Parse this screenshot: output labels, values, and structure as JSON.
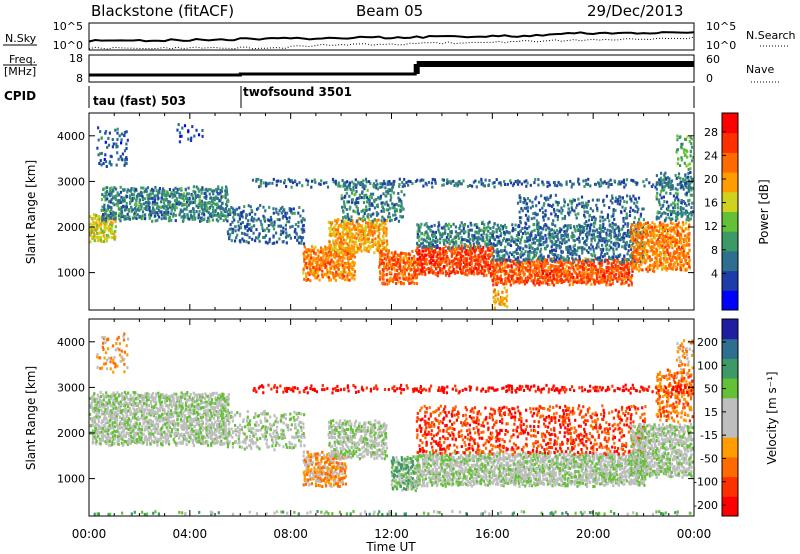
{
  "header": {
    "station": "Blackstone (fitACF)",
    "beam": "Beam 05",
    "date": "29/Dec/2013"
  },
  "strip_labels": {
    "nsky": "N.Sky",
    "nsky_top": "10^5",
    "nsky_bottom": "10^0",
    "nsearch": "N.Search",
    "nsearch_top": "10^5",
    "nsearch_bottom": "10^0",
    "freq_line1": "Freq.",
    "freq_line2": "[MHz]",
    "freq_top": "18",
    "freq_bottom": "8",
    "nave": "Nave",
    "nave_top": "60",
    "nave_bottom": "0",
    "cpid": "CPID",
    "cpid_mode1": "tau (fast) 503",
    "cpid_mode2": "twofsound 3501"
  },
  "colors": {
    "power": [
      "#0000ff",
      "#1e3ca8",
      "#2e6e8e",
      "#3c9a66",
      "#64c036",
      "#cfd21e",
      "#ff9c00",
      "#ff6a00",
      "#ff3000",
      "#ff0000"
    ],
    "velocity": [
      "#1e1ea0",
      "#2e6e8e",
      "#3c9a66",
      "#64c036",
      "#bebebe",
      "#bebebe",
      "#ff9c00",
      "#ff6a00",
      "#ff3000",
      "#ff0000"
    ]
  },
  "chart_data": [
    {
      "type": "heatmap",
      "name": "power",
      "xlabel": "",
      "ylabel": "Slant Range [km]",
      "x_ticks": [
        "00:00",
        "04:00",
        "08:00",
        "12:00",
        "16:00",
        "20:00",
        "00:00"
      ],
      "xlim_hours": [
        0,
        24
      ],
      "ylim": [
        180,
        4500
      ],
      "y_ticks": [
        1000,
        2000,
        3000,
        4000
      ],
      "colorbar_label": "Power [dB]",
      "colorbar_ticks": [
        4,
        8,
        12,
        16,
        20,
        24,
        28
      ],
      "colorbar_range": [
        0,
        30
      ],
      "bands": [
        {
          "t0": 0.0,
          "t1": 1.0,
          "r0": 1750,
          "r1": 2300,
          "level": 17,
          "density": 0.85
        },
        {
          "t0": 0.5,
          "t1": 5.5,
          "r0": 2200,
          "r1": 2900,
          "level": 8,
          "density": 0.75
        },
        {
          "t0": 0.3,
          "t1": 1.5,
          "r0": 3400,
          "r1": 4200,
          "level": 5,
          "density": 0.25
        },
        {
          "t0": 3.5,
          "t1": 4.5,
          "r0": 3900,
          "r1": 4300,
          "level": 4,
          "density": 0.2
        },
        {
          "t0": 5.5,
          "t1": 8.5,
          "r0": 1700,
          "r1": 2500,
          "level": 6,
          "density": 0.35
        },
        {
          "t0": 8.5,
          "t1": 10.5,
          "r0": 900,
          "r1": 1600,
          "level": 22,
          "density": 0.85
        },
        {
          "t0": 9.5,
          "t1": 11.8,
          "r0": 1500,
          "r1": 2200,
          "level": 20,
          "density": 0.8
        },
        {
          "t0": 10.0,
          "t1": 12.5,
          "r0": 2200,
          "r1": 3000,
          "level": 8,
          "density": 0.4
        },
        {
          "t0": 11.5,
          "t1": 13.0,
          "r0": 800,
          "r1": 1500,
          "level": 24,
          "density": 0.75
        },
        {
          "t0": 13.0,
          "t1": 16.0,
          "r0": 1000,
          "r1": 1600,
          "level": 26,
          "density": 0.9
        },
        {
          "t0": 13.0,
          "t1": 16.0,
          "r0": 1600,
          "r1": 2100,
          "level": 8,
          "density": 0.6
        },
        {
          "t0": 16.0,
          "t1": 16.6,
          "r0": 250,
          "r1": 700,
          "level": 20,
          "density": 0.6
        },
        {
          "t0": 16.0,
          "t1": 21.5,
          "r0": 800,
          "r1": 1300,
          "level": 25,
          "density": 0.9
        },
        {
          "t0": 16.0,
          "t1": 22.0,
          "r0": 1300,
          "r1": 2100,
          "level": 7,
          "density": 0.55
        },
        {
          "t0": 17.0,
          "t1": 22.0,
          "r0": 2100,
          "r1": 2700,
          "level": 6,
          "density": 0.3
        },
        {
          "t0": 21.5,
          "t1": 23.8,
          "r0": 1100,
          "r1": 2100,
          "level": 22,
          "density": 0.85
        },
        {
          "t0": 22.5,
          "t1": 24.0,
          "r0": 2200,
          "r1": 3200,
          "level": 8,
          "density": 0.5
        },
        {
          "t0": 23.3,
          "t1": 24.0,
          "r0": 3300,
          "r1": 4100,
          "level": 12,
          "density": 0.3
        },
        {
          "t0": 6.5,
          "t1": 24.0,
          "r0": 2950,
          "r1": 3060,
          "level": 6,
          "density": 0.45
        }
      ]
    },
    {
      "type": "heatmap",
      "name": "velocity",
      "xlabel": "Time UT",
      "ylabel": "Slant Range [km]",
      "x_ticks": [
        "00:00",
        "04:00",
        "08:00",
        "12:00",
        "16:00",
        "20:00",
        "00:00"
      ],
      "xlim_hours": [
        0,
        24
      ],
      "ylim": [
        180,
        4500
      ],
      "y_ticks": [
        1000,
        2000,
        3000,
        4000
      ],
      "colorbar_label": "Velocity [m s⁻¹]",
      "colorbar_ticks": [
        200,
        100,
        50,
        15,
        -15,
        -50,
        -100,
        -200
      ],
      "bands": [
        {
          "t0": 0.0,
          "t1": 5.5,
          "r0": 1800,
          "r1": 2900,
          "level": 4,
          "density": 0.85
        },
        {
          "t0": 0.3,
          "t1": 1.5,
          "r0": 3400,
          "r1": 4200,
          "level": 6,
          "density": 0.25
        },
        {
          "t0": 5.5,
          "t1": 8.5,
          "r0": 1700,
          "r1": 2500,
          "level": 4,
          "density": 0.4
        },
        {
          "t0": 8.5,
          "t1": 10.2,
          "r0": 900,
          "r1": 1600,
          "level": 6,
          "density": 0.9
        },
        {
          "t0": 9.5,
          "t1": 11.8,
          "r0": 1500,
          "r1": 2300,
          "level": 4,
          "density": 0.7
        },
        {
          "t0": 12.0,
          "t1": 13.0,
          "r0": 800,
          "r1": 1500,
          "level": 3,
          "density": 0.9
        },
        {
          "t0": 13.0,
          "t1": 22.0,
          "r0": 900,
          "r1": 1600,
          "level": 4,
          "density": 0.9
        },
        {
          "t0": 13.0,
          "t1": 22.0,
          "r0": 1600,
          "r1": 2600,
          "level": 8,
          "density": 0.35
        },
        {
          "t0": 21.5,
          "t1": 24.0,
          "r0": 1100,
          "r1": 2200,
          "level": 4,
          "density": 0.85
        },
        {
          "t0": 22.5,
          "t1": 24.0,
          "r0": 2300,
          "r1": 3400,
          "level": 7,
          "density": 0.5
        },
        {
          "t0": 23.3,
          "t1": 24.0,
          "r0": 3300,
          "r1": 4100,
          "level": 6,
          "density": 0.35
        },
        {
          "t0": 6.5,
          "t1": 24.0,
          "r0": 2950,
          "r1": 3060,
          "level": 9,
          "density": 0.45
        },
        {
          "t0": 0.0,
          "t1": 24.0,
          "r0": 180,
          "r1": 300,
          "level": 3,
          "density": 0.35
        }
      ]
    }
  ]
}
